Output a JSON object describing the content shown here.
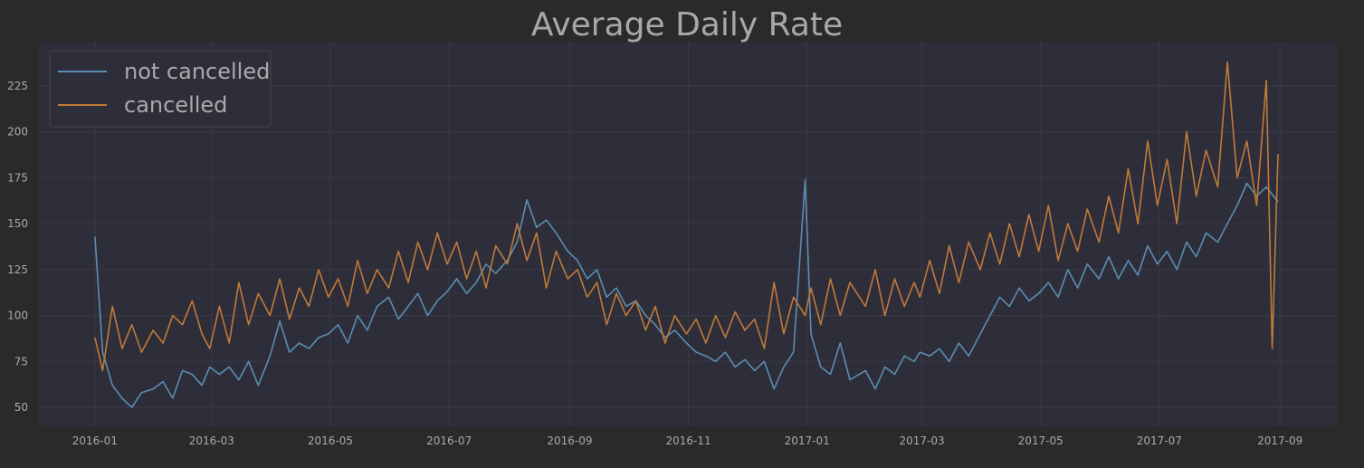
{
  "chart_data": {
    "type": "line",
    "title": "Average Daily Rate",
    "xlabel": "",
    "ylabel": "",
    "x_range": [
      "2016-01-01",
      "2017-09-30"
    ],
    "x_ticks": [
      "2016-01",
      "2016-03",
      "2016-05",
      "2016-07",
      "2016-09",
      "2016-11",
      "2017-01",
      "2017-03",
      "2017-05",
      "2017-07",
      "2017-09"
    ],
    "ylim": [
      38,
      245
    ],
    "y_ticks": [
      50,
      75,
      100,
      125,
      150,
      175,
      200,
      225
    ],
    "grid": true,
    "legend_position": "top-left",
    "colors": {
      "figure_bg": "#2a2a2a",
      "axes_bg": "#2e2e3a",
      "grid": "#3a3a48",
      "text": "#aaaaaa",
      "title": "#a8a8a8"
    },
    "series": [
      {
        "name": "not cancelled",
        "color": "#5b8db0",
        "points": [
          [
            "2016-01-01",
            143
          ],
          [
            "2016-01-05",
            80
          ],
          [
            "2016-01-10",
            62
          ],
          [
            "2016-01-15",
            55
          ],
          [
            "2016-01-20",
            50
          ],
          [
            "2016-01-25",
            58
          ],
          [
            "2016-01-31",
            60
          ],
          [
            "2016-02-05",
            64
          ],
          [
            "2016-02-10",
            55
          ],
          [
            "2016-02-15",
            70
          ],
          [
            "2016-02-20",
            68
          ],
          [
            "2016-02-25",
            62
          ],
          [
            "2016-02-29",
            72
          ],
          [
            "2016-03-05",
            68
          ],
          [
            "2016-03-10",
            72
          ],
          [
            "2016-03-15",
            65
          ],
          [
            "2016-03-20",
            75
          ],
          [
            "2016-03-25",
            62
          ],
          [
            "2016-03-31",
            78
          ],
          [
            "2016-04-05",
            97
          ],
          [
            "2016-04-10",
            80
          ],
          [
            "2016-04-15",
            85
          ],
          [
            "2016-04-20",
            82
          ],
          [
            "2016-04-25",
            88
          ],
          [
            "2016-04-30",
            90
          ],
          [
            "2016-05-05",
            95
          ],
          [
            "2016-05-10",
            85
          ],
          [
            "2016-05-15",
            100
          ],
          [
            "2016-05-20",
            92
          ],
          [
            "2016-05-25",
            105
          ],
          [
            "2016-05-31",
            110
          ],
          [
            "2016-06-05",
            98
          ],
          [
            "2016-06-10",
            105
          ],
          [
            "2016-06-15",
            112
          ],
          [
            "2016-06-20",
            100
          ],
          [
            "2016-06-25",
            108
          ],
          [
            "2016-06-30",
            113
          ],
          [
            "2016-07-05",
            120
          ],
          [
            "2016-07-10",
            112
          ],
          [
            "2016-07-15",
            118
          ],
          [
            "2016-07-20",
            128
          ],
          [
            "2016-07-25",
            123
          ],
          [
            "2016-07-31",
            130
          ],
          [
            "2016-08-05",
            140
          ],
          [
            "2016-08-10",
            163
          ],
          [
            "2016-08-15",
            148
          ],
          [
            "2016-08-20",
            152
          ],
          [
            "2016-08-25",
            145
          ],
          [
            "2016-08-31",
            135
          ],
          [
            "2016-09-05",
            130
          ],
          [
            "2016-09-10",
            120
          ],
          [
            "2016-09-15",
            125
          ],
          [
            "2016-09-20",
            110
          ],
          [
            "2016-09-25",
            115
          ],
          [
            "2016-09-30",
            105
          ],
          [
            "2016-10-05",
            108
          ],
          [
            "2016-10-10",
            100
          ],
          [
            "2016-10-15",
            95
          ],
          [
            "2016-10-20",
            88
          ],
          [
            "2016-10-25",
            92
          ],
          [
            "2016-10-31",
            85
          ],
          [
            "2016-11-05",
            80
          ],
          [
            "2016-11-10",
            78
          ],
          [
            "2016-11-15",
            75
          ],
          [
            "2016-11-20",
            80
          ],
          [
            "2016-11-25",
            72
          ],
          [
            "2016-11-30",
            76
          ],
          [
            "2016-12-05",
            70
          ],
          [
            "2016-12-10",
            75
          ],
          [
            "2016-12-15",
            60
          ],
          [
            "2016-12-20",
            72
          ],
          [
            "2016-12-25",
            80
          ],
          [
            "2016-12-31",
            174
          ],
          [
            "2017-01-03",
            90
          ],
          [
            "2017-01-08",
            72
          ],
          [
            "2017-01-13",
            68
          ],
          [
            "2017-01-18",
            85
          ],
          [
            "2017-01-23",
            65
          ],
          [
            "2017-01-31",
            70
          ],
          [
            "2017-02-05",
            60
          ],
          [
            "2017-02-10",
            72
          ],
          [
            "2017-02-15",
            68
          ],
          [
            "2017-02-20",
            78
          ],
          [
            "2017-02-25",
            75
          ],
          [
            "2017-02-28",
            80
          ],
          [
            "2017-03-05",
            78
          ],
          [
            "2017-03-10",
            82
          ],
          [
            "2017-03-15",
            75
          ],
          [
            "2017-03-20",
            85
          ],
          [
            "2017-03-25",
            78
          ],
          [
            "2017-03-31",
            90
          ],
          [
            "2017-04-05",
            100
          ],
          [
            "2017-04-10",
            110
          ],
          [
            "2017-04-15",
            105
          ],
          [
            "2017-04-20",
            115
          ],
          [
            "2017-04-25",
            108
          ],
          [
            "2017-04-30",
            112
          ],
          [
            "2017-05-05",
            118
          ],
          [
            "2017-05-10",
            110
          ],
          [
            "2017-05-15",
            125
          ],
          [
            "2017-05-20",
            115
          ],
          [
            "2017-05-25",
            128
          ],
          [
            "2017-05-31",
            120
          ],
          [
            "2017-06-05",
            132
          ],
          [
            "2017-06-10",
            120
          ],
          [
            "2017-06-15",
            130
          ],
          [
            "2017-06-20",
            122
          ],
          [
            "2017-06-25",
            138
          ],
          [
            "2017-06-30",
            128
          ],
          [
            "2017-07-05",
            135
          ],
          [
            "2017-07-10",
            125
          ],
          [
            "2017-07-15",
            140
          ],
          [
            "2017-07-20",
            132
          ],
          [
            "2017-07-25",
            145
          ],
          [
            "2017-07-31",
            140
          ],
          [
            "2017-08-05",
            150
          ],
          [
            "2017-08-10",
            160
          ],
          [
            "2017-08-15",
            172
          ],
          [
            "2017-08-20",
            165
          ],
          [
            "2017-08-25",
            170
          ],
          [
            "2017-08-31",
            162
          ]
        ]
      },
      {
        "name": "cancelled",
        "color": "#c07a38",
        "points": [
          [
            "2016-01-01",
            88
          ],
          [
            "2016-01-05",
            70
          ],
          [
            "2016-01-10",
            105
          ],
          [
            "2016-01-15",
            82
          ],
          [
            "2016-01-20",
            95
          ],
          [
            "2016-01-25",
            80
          ],
          [
            "2016-01-31",
            92
          ],
          [
            "2016-02-05",
            85
          ],
          [
            "2016-02-10",
            100
          ],
          [
            "2016-02-15",
            95
          ],
          [
            "2016-02-20",
            108
          ],
          [
            "2016-02-25",
            90
          ],
          [
            "2016-02-29",
            82
          ],
          [
            "2016-03-05",
            105
          ],
          [
            "2016-03-10",
            85
          ],
          [
            "2016-03-15",
            118
          ],
          [
            "2016-03-20",
            95
          ],
          [
            "2016-03-25",
            112
          ],
          [
            "2016-03-31",
            100
          ],
          [
            "2016-04-05",
            120
          ],
          [
            "2016-04-10",
            98
          ],
          [
            "2016-04-15",
            115
          ],
          [
            "2016-04-20",
            105
          ],
          [
            "2016-04-25",
            125
          ],
          [
            "2016-04-30",
            110
          ],
          [
            "2016-05-05",
            120
          ],
          [
            "2016-05-10",
            105
          ],
          [
            "2016-05-15",
            130
          ],
          [
            "2016-05-20",
            112
          ],
          [
            "2016-05-25",
            125
          ],
          [
            "2016-05-31",
            115
          ],
          [
            "2016-06-05",
            135
          ],
          [
            "2016-06-10",
            118
          ],
          [
            "2016-06-15",
            140
          ],
          [
            "2016-06-20",
            125
          ],
          [
            "2016-06-25",
            145
          ],
          [
            "2016-06-30",
            128
          ],
          [
            "2016-07-05",
            140
          ],
          [
            "2016-07-10",
            120
          ],
          [
            "2016-07-15",
            135
          ],
          [
            "2016-07-20",
            115
          ],
          [
            "2016-07-25",
            138
          ],
          [
            "2016-07-31",
            128
          ],
          [
            "2016-08-05",
            150
          ],
          [
            "2016-08-10",
            130
          ],
          [
            "2016-08-15",
            145
          ],
          [
            "2016-08-20",
            115
          ],
          [
            "2016-08-25",
            135
          ],
          [
            "2016-08-31",
            120
          ],
          [
            "2016-09-05",
            125
          ],
          [
            "2016-09-10",
            110
          ],
          [
            "2016-09-15",
            118
          ],
          [
            "2016-09-20",
            95
          ],
          [
            "2016-09-25",
            112
          ],
          [
            "2016-09-30",
            100
          ],
          [
            "2016-10-05",
            108
          ],
          [
            "2016-10-10",
            92
          ],
          [
            "2016-10-15",
            105
          ],
          [
            "2016-10-20",
            85
          ],
          [
            "2016-10-25",
            100
          ],
          [
            "2016-10-31",
            90
          ],
          [
            "2016-11-05",
            98
          ],
          [
            "2016-11-10",
            85
          ],
          [
            "2016-11-15",
            100
          ],
          [
            "2016-11-20",
            88
          ],
          [
            "2016-11-25",
            102
          ],
          [
            "2016-11-30",
            92
          ],
          [
            "2016-12-05",
            98
          ],
          [
            "2016-12-10",
            82
          ],
          [
            "2016-12-15",
            118
          ],
          [
            "2016-12-20",
            90
          ],
          [
            "2016-12-25",
            110
          ],
          [
            "2016-12-31",
            100
          ],
          [
            "2017-01-03",
            115
          ],
          [
            "2017-01-08",
            95
          ],
          [
            "2017-01-13",
            120
          ],
          [
            "2017-01-18",
            100
          ],
          [
            "2017-01-23",
            118
          ],
          [
            "2017-01-31",
            105
          ],
          [
            "2017-02-05",
            125
          ],
          [
            "2017-02-10",
            100
          ],
          [
            "2017-02-15",
            120
          ],
          [
            "2017-02-20",
            105
          ],
          [
            "2017-02-25",
            118
          ],
          [
            "2017-02-28",
            110
          ],
          [
            "2017-03-05",
            130
          ],
          [
            "2017-03-10",
            112
          ],
          [
            "2017-03-15",
            138
          ],
          [
            "2017-03-20",
            118
          ],
          [
            "2017-03-25",
            140
          ],
          [
            "2017-03-31",
            125
          ],
          [
            "2017-04-05",
            145
          ],
          [
            "2017-04-10",
            128
          ],
          [
            "2017-04-15",
            150
          ],
          [
            "2017-04-20",
            132
          ],
          [
            "2017-04-25",
            155
          ],
          [
            "2017-04-30",
            135
          ],
          [
            "2017-05-05",
            160
          ],
          [
            "2017-05-10",
            130
          ],
          [
            "2017-05-15",
            150
          ],
          [
            "2017-05-20",
            135
          ],
          [
            "2017-05-25",
            158
          ],
          [
            "2017-05-31",
            140
          ],
          [
            "2017-06-05",
            165
          ],
          [
            "2017-06-10",
            145
          ],
          [
            "2017-06-15",
            180
          ],
          [
            "2017-06-20",
            150
          ],
          [
            "2017-06-25",
            195
          ],
          [
            "2017-06-30",
            160
          ],
          [
            "2017-07-05",
            185
          ],
          [
            "2017-07-10",
            150
          ],
          [
            "2017-07-15",
            200
          ],
          [
            "2017-07-20",
            165
          ],
          [
            "2017-07-25",
            190
          ],
          [
            "2017-07-31",
            170
          ],
          [
            "2017-08-05",
            238
          ],
          [
            "2017-08-10",
            175
          ],
          [
            "2017-08-15",
            195
          ],
          [
            "2017-08-20",
            160
          ],
          [
            "2017-08-25",
            228
          ],
          [
            "2017-08-28",
            82
          ],
          [
            "2017-08-31",
            188
          ]
        ]
      }
    ]
  }
}
